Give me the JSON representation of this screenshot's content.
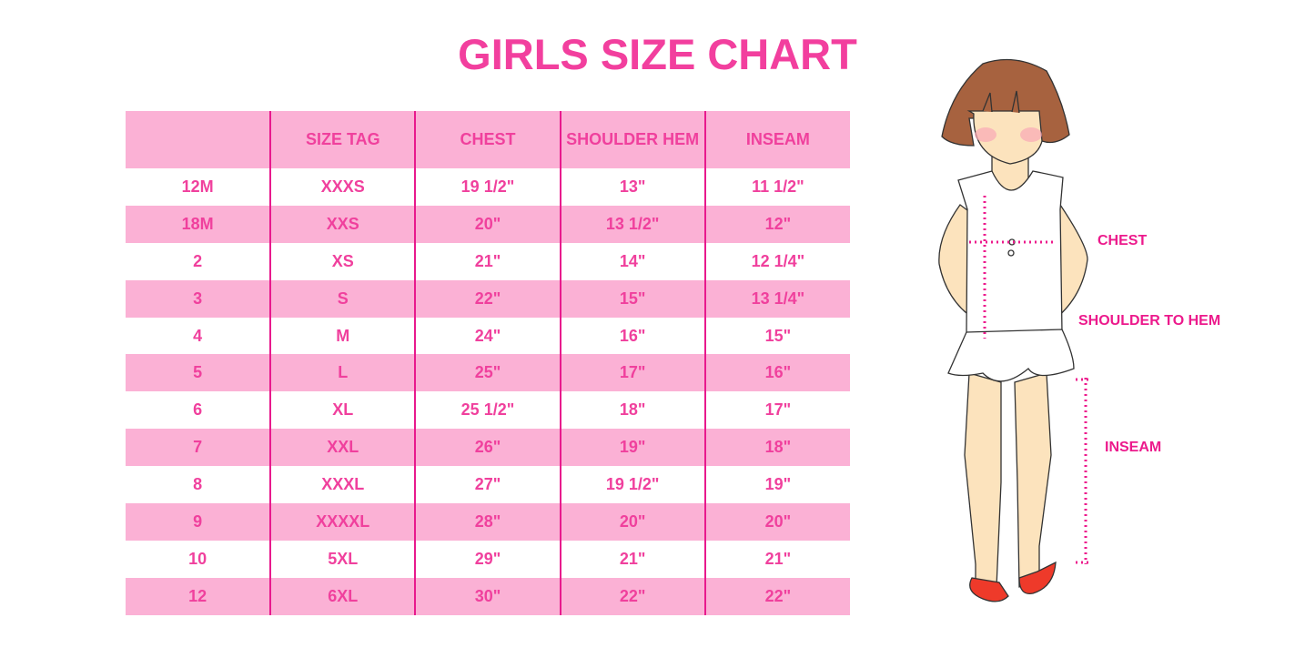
{
  "title": "GIRLS SIZE CHART",
  "table": {
    "headers": [
      "",
      "SIZE TAG",
      "CHEST",
      "SHOULDER HEM",
      "INSEAM"
    ],
    "rows": [
      [
        "12M",
        "XXXS",
        "19 1/2\"",
        "13\"",
        "11 1/2\""
      ],
      [
        "18M",
        "XXS",
        "20\"",
        "13 1/2\"",
        "12\""
      ],
      [
        "2",
        "XS",
        "21\"",
        "14\"",
        "12 1/4\""
      ],
      [
        "3",
        "S",
        "22\"",
        "15\"",
        "13 1/4\""
      ],
      [
        "4",
        "M",
        "24\"",
        "16\"",
        "15\""
      ],
      [
        "5",
        "L",
        "25\"",
        "17\"",
        "16\""
      ],
      [
        "6",
        "XL",
        "25 1/2\"",
        "18\"",
        "17\""
      ],
      [
        "7",
        "XXL",
        "26\"",
        "19\"",
        "18\""
      ],
      [
        "8",
        "XXXL",
        "27\"",
        "19 1/2\"",
        "19\""
      ],
      [
        "9",
        "XXXXL",
        "28\"",
        "20\"",
        "20\""
      ],
      [
        "10",
        "5XL",
        "29\"",
        "21\"",
        "21\""
      ],
      [
        "12",
        "6XL",
        "30\"",
        "22\"",
        "22\""
      ]
    ]
  },
  "illustration": {
    "labels": {
      "chest": "CHEST",
      "shoulder_to_hem": "SHOULDER TO HEM",
      "inseam": "INSEAM"
    }
  },
  "colors": {
    "accent": "#f0409d",
    "row_pink": "#fbb1d5",
    "divider": "#e8198d"
  }
}
